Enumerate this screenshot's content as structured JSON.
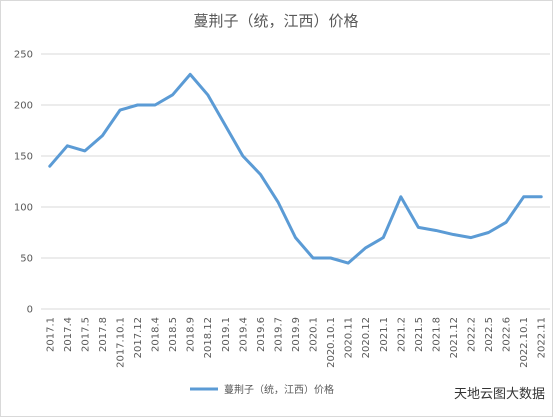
{
  "chart_data": {
    "type": "line",
    "title": "蔓荆子（统，江西）价格",
    "categories": [
      "2017.1",
      "2017.4",
      "2017.5",
      "2017.8",
      "2017.10.1",
      "2017.12",
      "2018.4",
      "2018.5",
      "2018.9",
      "2018.12",
      "2019.1",
      "2019.4",
      "2019.6",
      "2019.7",
      "2019.9",
      "2020.1",
      "2020.10.1",
      "2020.11",
      "2020.12",
      "2021.1",
      "2021.2",
      "2021.5",
      "2021.8",
      "2021.12",
      "2022.2",
      "2022.5",
      "2022.6",
      "2022.10.1",
      "2022.11"
    ],
    "series": [
      {
        "name": "蔓荆子（统，江西）价格",
        "color": "#5b9bd5",
        "values": [
          140,
          160,
          155,
          170,
          195,
          200,
          200,
          210,
          230,
          210,
          180,
          150,
          132,
          105,
          70,
          50,
          50,
          45,
          60,
          70,
          110,
          80,
          77,
          73,
          70,
          75,
          85,
          110,
          110
        ]
      }
    ],
    "ylim": [
      0,
      250
    ],
    "yticks": [
      0,
      50,
      100,
      150,
      200,
      250
    ],
    "grid": true,
    "legend": "bottom",
    "watermark": "天地云图大数据"
  }
}
